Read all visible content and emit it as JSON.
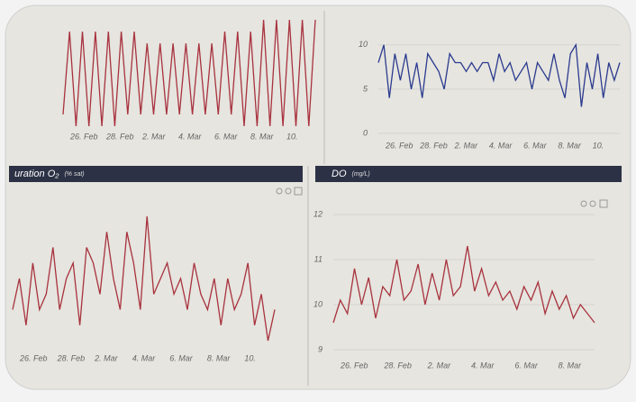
{
  "chart_data": [
    {
      "type": "line",
      "color": "#a8323e",
      "xticks": [
        "26. Feb",
        "28. Feb",
        "2. Mar",
        "4. Mar",
        "6. Mar",
        "8. Mar",
        "10."
      ],
      "values": [
        2,
        9,
        1,
        9,
        1,
        9,
        1,
        9,
        1,
        9,
        2,
        9,
        2,
        8,
        2,
        8,
        2,
        8,
        2,
        8,
        2,
        8,
        2,
        8,
        2,
        9,
        2,
        9,
        1,
        9,
        1,
        10,
        1,
        10,
        1,
        10,
        1,
        10,
        1,
        10
      ]
    },
    {
      "type": "line",
      "color": "#2b3a8f",
      "xticks": [
        "26. Feb",
        "28. Feb",
        "2. Mar",
        "4. Mar",
        "6. Mar",
        "8. Mar",
        "10."
      ],
      "ylim": [
        0,
        11
      ],
      "yticks": [
        0,
        5,
        10
      ],
      "values": [
        8,
        10,
        4,
        9,
        6,
        9,
        5,
        8,
        4,
        9,
        8,
        7,
        5,
        9,
        8,
        8,
        7,
        8,
        7,
        8,
        8,
        6,
        9,
        7,
        8,
        6,
        7,
        8,
        5,
        8,
        7,
        6,
        9,
        6,
        4,
        9,
        10,
        3,
        8,
        5,
        9,
        4,
        8,
        6,
        8
      ]
    },
    {
      "type": "line",
      "color": "#a8323e",
      "title": "uration O₂",
      "subtitle": "(% sat)",
      "xticks": [
        "26. Feb",
        "28. Feb",
        "2. Mar",
        "4. Mar",
        "6. Mar",
        "8. Mar",
        "10."
      ],
      "values": [
        3,
        5,
        2,
        6,
        3,
        4,
        7,
        3,
        5,
        6,
        2,
        7,
        6,
        4,
        8,
        5,
        3,
        8,
        6,
        3,
        9,
        4,
        5,
        6,
        4,
        5,
        3,
        6,
        4,
        3,
        5,
        2,
        5,
        3,
        4,
        6,
        2,
        4,
        1,
        3
      ]
    },
    {
      "type": "line",
      "color": "#a8323e",
      "title": "DO",
      "subtitle": "(mg/L)",
      "xticks": [
        "26. Feb",
        "28. Feb",
        "2. Mar",
        "4. Mar",
        "6. Mar",
        "8. Mar"
      ],
      "ylim": [
        9,
        12.2
      ],
      "yticks": [
        9,
        10,
        11,
        12
      ],
      "values": [
        9.6,
        10.1,
        9.8,
        10.8,
        10,
        10.6,
        9.7,
        10.4,
        10.2,
        11,
        10.1,
        10.3,
        10.9,
        10,
        10.7,
        10.1,
        11,
        10.2,
        10.4,
        11.3,
        10.3,
        10.8,
        10.2,
        10.5,
        10.1,
        10.3,
        9.9,
        10.4,
        10.1,
        10.5,
        9.8,
        10.3,
        9.9,
        10.2,
        9.7,
        10,
        9.8,
        9.6
      ]
    }
  ]
}
